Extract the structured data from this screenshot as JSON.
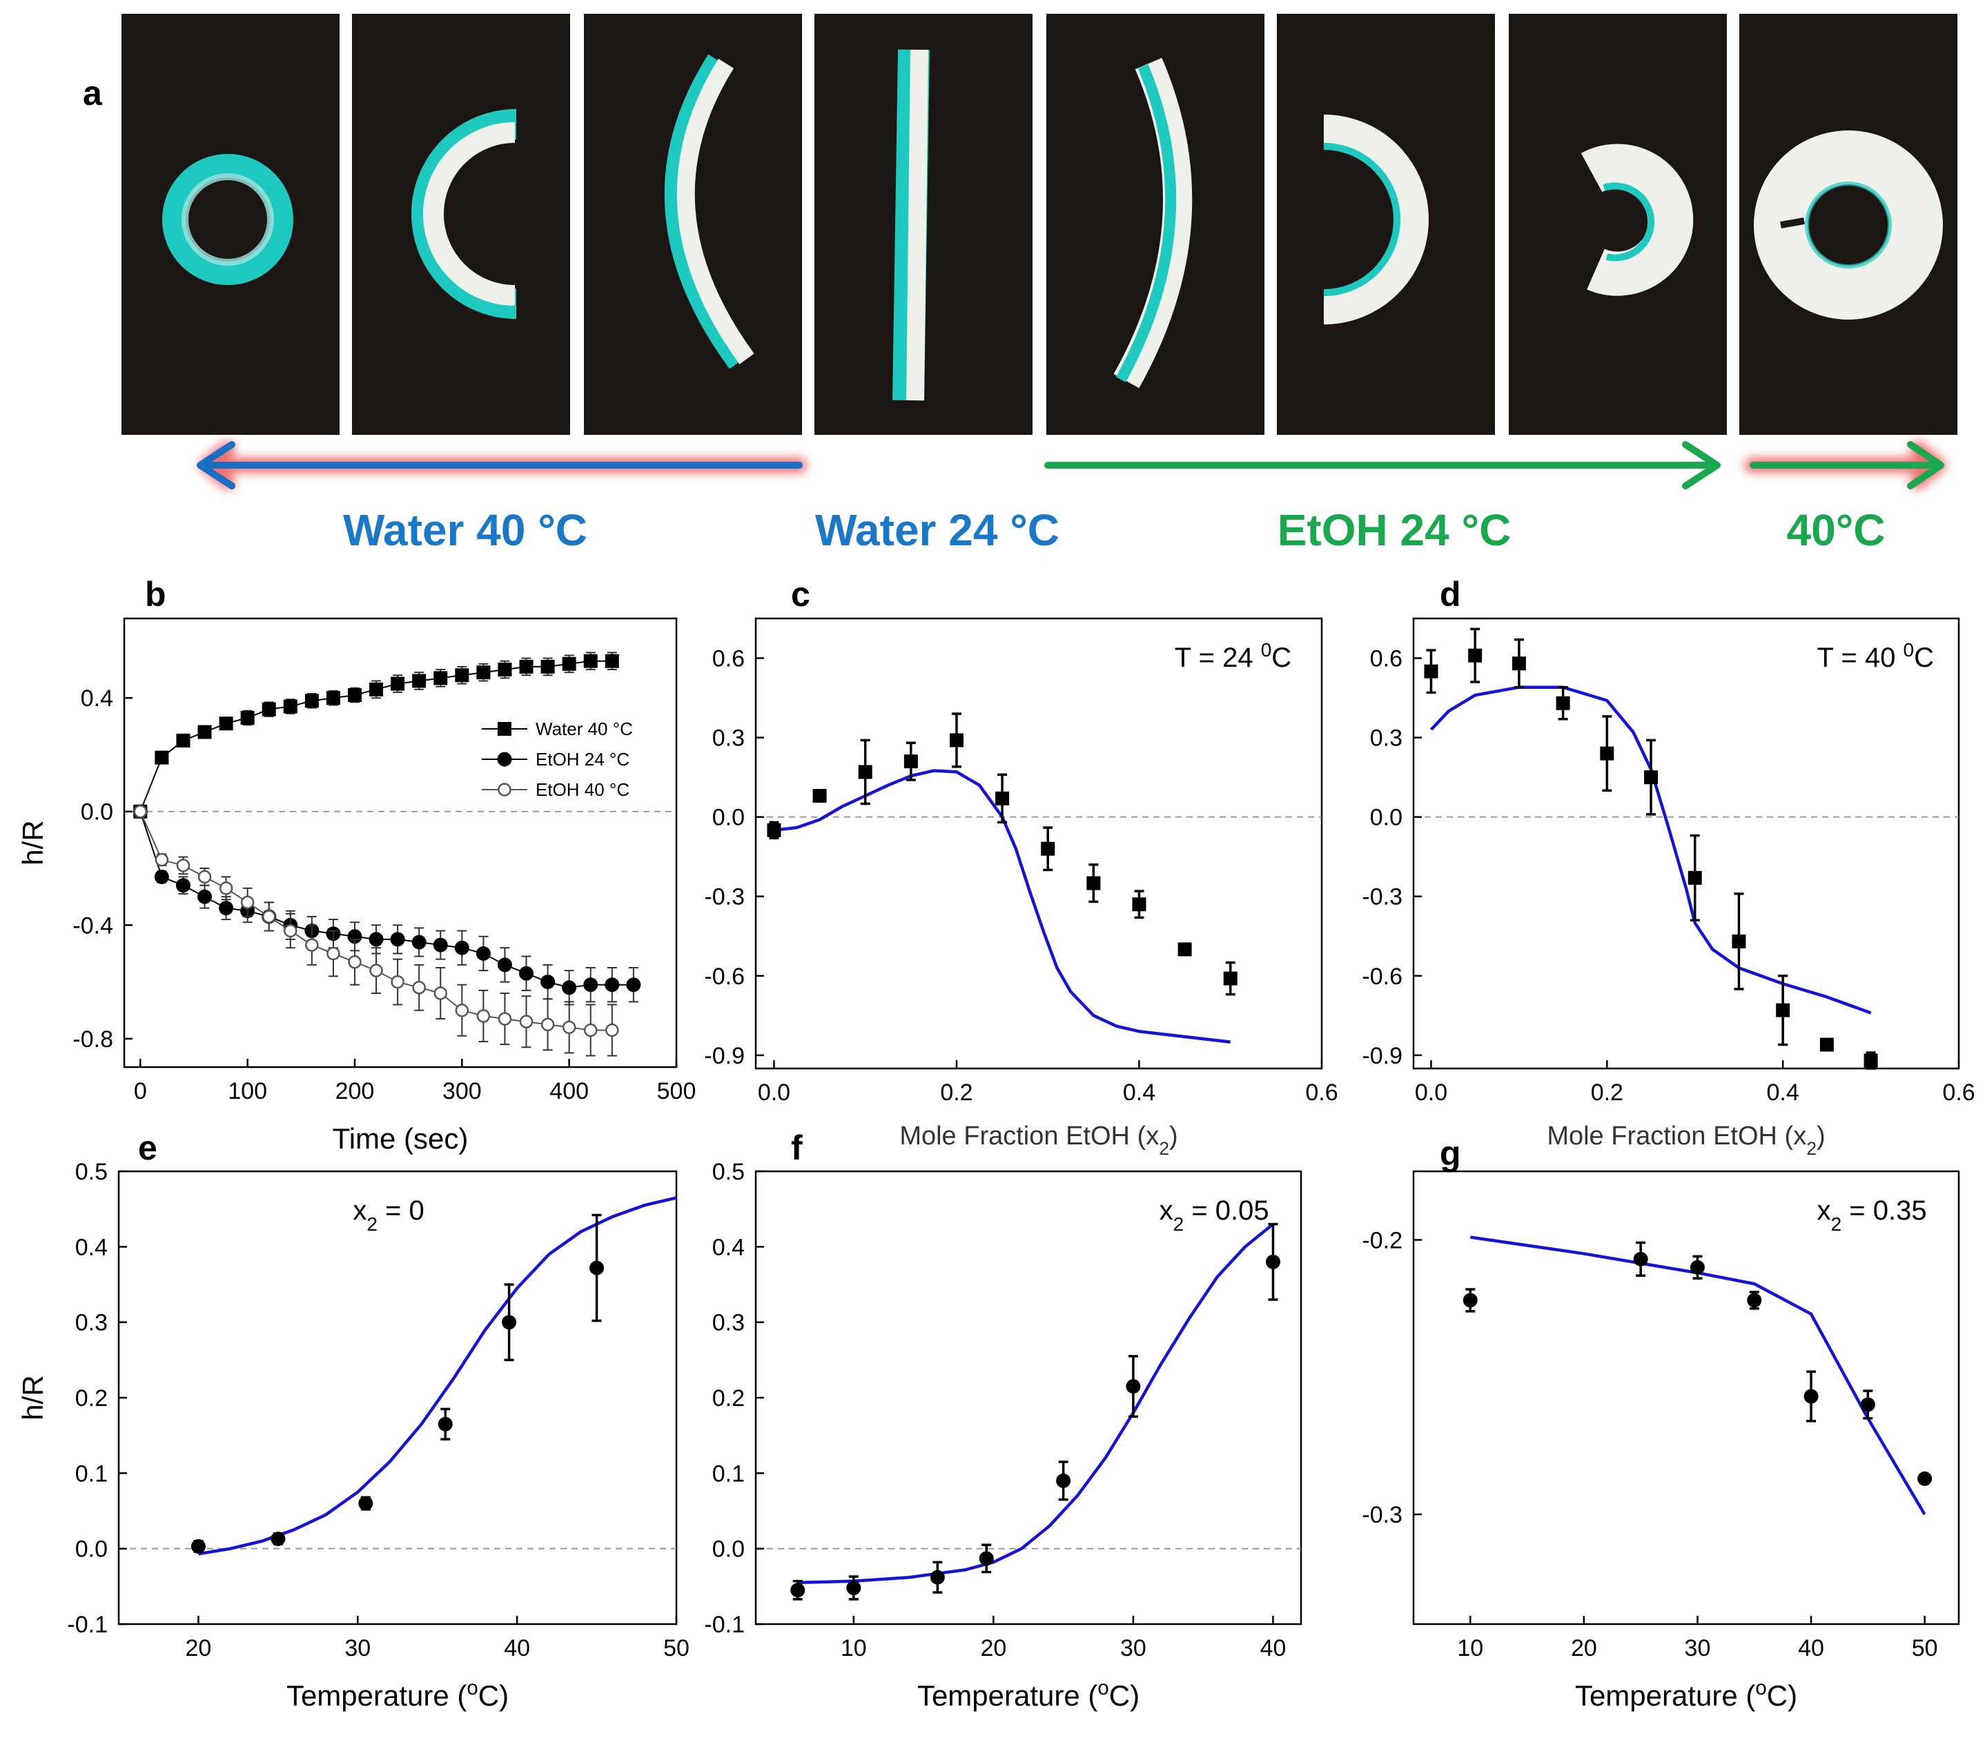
{
  "photos": {
    "label": "a",
    "colors": {
      "background": "#1c1612",
      "gel": "#eef0ea",
      "layer": "#1ec9c0"
    },
    "arrows": {
      "blue": "#1a6fc4",
      "green": "#1aa84e",
      "glow": "#f07070"
    },
    "band_labels": [
      {
        "text": "Water 40 °C",
        "color": "#1a78c8"
      },
      {
        "text": "Water 24 °C",
        "color": "#1a78c8"
      },
      {
        "text": "EtOH 24 °C",
        "color": "#1aa84e"
      },
      {
        "text": "40°C",
        "color": "#1aa84e"
      }
    ]
  },
  "chart_data": [
    {
      "panel": "b",
      "type": "line",
      "xlabel": "Time (sec)",
      "ylabel": "h/R",
      "xlim": [
        -15,
        500
      ],
      "ylim": [
        -0.9,
        0.68
      ],
      "xticks": [
        0,
        100,
        200,
        300,
        400,
        500
      ],
      "yticks": [
        0.4,
        0.0,
        -0.4,
        -0.8
      ],
      "ytick_labels": [
        "0.4",
        "0.0",
        "-0.4",
        "-0.8"
      ],
      "zero_line": true,
      "legend": {
        "placement": "center-right",
        "entries": [
          "Water 40 °C",
          "EtOH 24 °C",
          "EtOH 40 °C"
        ]
      },
      "series": [
        {
          "name": "Water 40 °C",
          "marker": "square-filled",
          "color": "#000000",
          "x": [
            0,
            20,
            40,
            60,
            80,
            100,
            120,
            140,
            160,
            180,
            200,
            220,
            240,
            260,
            280,
            300,
            320,
            340,
            360,
            380,
            400,
            420,
            440
          ],
          "y": [
            0,
            0.19,
            0.25,
            0.28,
            0.31,
            0.33,
            0.36,
            0.37,
            0.39,
            0.4,
            0.41,
            0.43,
            0.45,
            0.46,
            0.47,
            0.48,
            0.49,
            0.5,
            0.51,
            0.51,
            0.52,
            0.53,
            0.53
          ],
          "err": [
            0,
            0.01,
            0.02,
            0.02,
            0.02,
            0.025,
            0.025,
            0.025,
            0.025,
            0.025,
            0.025,
            0.03,
            0.03,
            0.03,
            0.03,
            0.03,
            0.03,
            0.03,
            0.03,
            0.03,
            0.03,
            0.03,
            0.03
          ]
        },
        {
          "name": "EtOH 24 °C",
          "marker": "circle-filled",
          "color": "#000000",
          "x": [
            0,
            20,
            40,
            60,
            80,
            100,
            120,
            140,
            160,
            180,
            200,
            220,
            240,
            260,
            280,
            300,
            320,
            340,
            360,
            380,
            400,
            420,
            440,
            460
          ],
          "y": [
            0,
            -0.23,
            -0.26,
            -0.3,
            -0.34,
            -0.35,
            -0.37,
            -0.4,
            -0.42,
            -0.43,
            -0.44,
            -0.45,
            -0.45,
            -0.46,
            -0.47,
            -0.48,
            -0.5,
            -0.54,
            -0.57,
            -0.6,
            -0.62,
            -0.61,
            -0.61,
            -0.61
          ],
          "err": [
            0,
            0.02,
            0.03,
            0.04,
            0.04,
            0.04,
            0.05,
            0.05,
            0.05,
            0.05,
            0.05,
            0.05,
            0.05,
            0.05,
            0.05,
            0.06,
            0.06,
            0.06,
            0.06,
            0.06,
            0.06,
            0.06,
            0.06,
            0.06
          ]
        },
        {
          "name": "EtOH 40 °C",
          "marker": "circle-open",
          "color": "#555555",
          "x": [
            0,
            20,
            40,
            60,
            80,
            100,
            120,
            140,
            160,
            180,
            200,
            220,
            240,
            260,
            280,
            300,
            320,
            340,
            360,
            380,
            400,
            420,
            440
          ],
          "y": [
            0,
            -0.17,
            -0.19,
            -0.23,
            -0.27,
            -0.32,
            -0.37,
            -0.42,
            -0.47,
            -0.5,
            -0.53,
            -0.56,
            -0.6,
            -0.62,
            -0.64,
            -0.7,
            -0.72,
            -0.73,
            -0.74,
            -0.75,
            -0.76,
            -0.77,
            -0.77
          ],
          "err": [
            0,
            0.02,
            0.03,
            0.03,
            0.04,
            0.05,
            0.05,
            0.06,
            0.07,
            0.08,
            0.08,
            0.08,
            0.08,
            0.08,
            0.09,
            0.09,
            0.09,
            0.09,
            0.09,
            0.09,
            0.09,
            0.09,
            0.09
          ]
        }
      ]
    },
    {
      "panel": "c",
      "type": "scatter",
      "xlabel": "Mole Fraction EtOH (x",
      "xlabel_sub": "2",
      "xlabel_tail": ")",
      "ylabel": "",
      "annotation": "T = 24 ",
      "annotation_sup": "0",
      "annotation_tail": "C",
      "xlim": [
        -0.02,
        0.6
      ],
      "ylim": [
        -0.95,
        0.75
      ],
      "xticks": [
        0.0,
        0.2,
        0.4,
        0.6
      ],
      "xtick_labels": [
        "0.0",
        "0.2",
        "0.4",
        "0.6"
      ],
      "yticks": [
        0.6,
        0.3,
        0.0,
        -0.3,
        -0.6,
        -0.9
      ],
      "ytick_labels": [
        "0.6",
        "0.3",
        "0.0",
        "-0.3",
        "-0.6",
        "-0.9"
      ],
      "zero_line": true,
      "points": {
        "marker": "square-filled",
        "x": [
          0.0,
          0.05,
          0.1,
          0.15,
          0.2,
          0.25,
          0.3,
          0.35,
          0.4,
          0.45,
          0.5
        ],
        "y": [
          -0.05,
          0.08,
          0.17,
          0.21,
          0.29,
          0.07,
          -0.12,
          -0.25,
          -0.33,
          -0.5,
          -0.61
        ],
        "err": [
          0.03,
          0.02,
          0.12,
          0.07,
          0.1,
          0.09,
          0.08,
          0.07,
          0.05,
          0.02,
          0.06
        ]
      },
      "model": {
        "color": "#1414d8",
        "x": [
          0.0,
          0.025,
          0.05,
          0.075,
          0.1,
          0.125,
          0.15,
          0.175,
          0.2,
          0.225,
          0.25,
          0.265,
          0.28,
          0.295,
          0.31,
          0.325,
          0.35,
          0.375,
          0.4,
          0.45,
          0.5
        ],
        "y": [
          -0.05,
          -0.04,
          -0.01,
          0.04,
          0.08,
          0.12,
          0.155,
          0.175,
          0.17,
          0.12,
          0.0,
          -0.12,
          -0.28,
          -0.43,
          -0.57,
          -0.66,
          -0.75,
          -0.79,
          -0.81,
          -0.83,
          -0.85
        ]
      }
    },
    {
      "panel": "d",
      "type": "scatter",
      "xlabel": "Mole Fraction EtOH (x",
      "xlabel_sub": "2",
      "xlabel_tail": ")",
      "ylabel": "",
      "annotation": "T = 40 ",
      "annotation_sup": "0",
      "annotation_tail": "C",
      "xlim": [
        -0.02,
        0.6
      ],
      "ylim": [
        -0.95,
        0.75
      ],
      "xticks": [
        0.0,
        0.2,
        0.4,
        0.6
      ],
      "xtick_labels": [
        "0.0",
        "0.2",
        "0.4",
        "0.6"
      ],
      "yticks": [
        0.6,
        0.3,
        0.0,
        -0.3,
        -0.6,
        -0.9
      ],
      "ytick_labels": [
        "0.6",
        "0.3",
        "0.0",
        "-0.3",
        "-0.6",
        "-0.9"
      ],
      "zero_line": true,
      "points": {
        "marker": "square-filled",
        "x": [
          0.0,
          0.05,
          0.1,
          0.15,
          0.2,
          0.25,
          0.3,
          0.35,
          0.4,
          0.45,
          0.5
        ],
        "y": [
          0.55,
          0.61,
          0.58,
          0.43,
          0.24,
          0.15,
          -0.23,
          -0.47,
          -0.73,
          -0.86,
          -0.92
        ],
        "err": [
          0.08,
          0.1,
          0.09,
          0.06,
          0.14,
          0.14,
          0.16,
          0.18,
          0.13,
          0.02,
          0.03
        ]
      },
      "model": {
        "color": "#1414d8",
        "x": [
          0.0,
          0.02,
          0.05,
          0.1,
          0.15,
          0.2,
          0.23,
          0.25,
          0.27,
          0.29,
          0.3,
          0.32,
          0.35,
          0.4,
          0.45,
          0.5
        ],
        "y": [
          0.33,
          0.4,
          0.46,
          0.49,
          0.49,
          0.44,
          0.32,
          0.18,
          -0.04,
          -0.27,
          -0.4,
          -0.5,
          -0.57,
          -0.63,
          -0.68,
          -0.74
        ]
      }
    },
    {
      "panel": "e",
      "type": "scatter",
      "xlabel": "Temperature (",
      "xlabel_sup": "o",
      "xlabel_tail": "C)",
      "ylabel": "h/R",
      "annotation": "x",
      "annotation_sub": "2",
      "annotation_tail": " = 0",
      "xlim": [
        15,
        50
      ],
      "ylim": [
        -0.1,
        0.5
      ],
      "xticks": [
        20,
        30,
        40,
        50
      ],
      "xtick_labels": [
        "20",
        "30",
        "40",
        "50"
      ],
      "yticks": [
        0.5,
        0.4,
        0.3,
        0.2,
        0.1,
        0.0,
        -0.1
      ],
      "ytick_labels": [
        "0.5",
        "0.4",
        "0.3",
        "0.2",
        "0.1",
        "0.0",
        "-0.1"
      ],
      "zero_line": true,
      "points": {
        "marker": "circle-filled",
        "x": [
          20,
          25,
          30.5,
          35.5,
          39.5,
          45
        ],
        "y": [
          0.003,
          0.013,
          0.06,
          0.165,
          0.3,
          0.372
        ],
        "err": [
          0.007,
          0.007,
          0.008,
          0.02,
          0.05,
          0.07
        ]
      },
      "model": {
        "color": "#1414d8",
        "x": [
          20,
          22,
          24,
          26,
          28,
          30,
          32,
          34,
          36,
          38,
          40,
          42,
          44,
          46,
          48,
          50
        ],
        "y": [
          -0.007,
          0.0,
          0.01,
          0.025,
          0.045,
          0.075,
          0.115,
          0.165,
          0.225,
          0.29,
          0.345,
          0.39,
          0.42,
          0.44,
          0.455,
          0.465
        ]
      }
    },
    {
      "panel": "f",
      "type": "scatter",
      "xlabel": "Temperature (",
      "xlabel_sup": "o",
      "xlabel_tail": "C)",
      "ylabel": "",
      "annotation": "x",
      "annotation_sub": "2",
      "annotation_tail": " = 0.05",
      "xlim": [
        3,
        42
      ],
      "ylim": [
        -0.1,
        0.5
      ],
      "xticks": [
        10,
        20,
        30,
        40
      ],
      "xtick_labels": [
        "10",
        "20",
        "30",
        "40"
      ],
      "yticks": [
        0.5,
        0.4,
        0.3,
        0.2,
        0.1,
        0.0,
        -0.1
      ],
      "ytick_labels": [
        "0.5",
        "0.4",
        "0.3",
        "0.2",
        "0.1",
        "0.0",
        "-0.1"
      ],
      "zero_line": true,
      "points": {
        "marker": "circle-filled",
        "x": [
          6,
          10,
          16,
          19.5,
          25,
          30,
          40
        ],
        "y": [
          -0.055,
          -0.052,
          -0.038,
          -0.013,
          0.09,
          0.215,
          0.38
        ],
        "err": [
          0.012,
          0.015,
          0.02,
          0.018,
          0.025,
          0.04,
          0.05
        ]
      },
      "model": {
        "color": "#1414d8",
        "x": [
          6,
          10,
          14,
          18,
          20,
          22,
          24,
          26,
          28,
          30,
          32,
          34,
          36,
          38,
          40
        ],
        "y": [
          -0.045,
          -0.043,
          -0.038,
          -0.028,
          -0.018,
          0.0,
          0.03,
          0.07,
          0.12,
          0.18,
          0.245,
          0.305,
          0.36,
          0.4,
          0.43
        ]
      }
    },
    {
      "panel": "g",
      "type": "scatter",
      "xlabel": "Temperature (",
      "xlabel_sup": "o",
      "xlabel_tail": "C)",
      "ylabel": "",
      "annotation": "x",
      "annotation_sub": "2",
      "annotation_tail": " = 0.35",
      "xlim": [
        5,
        53
      ],
      "ylim": [
        -0.34,
        -0.175
      ],
      "xticks": [
        10,
        20,
        30,
        40,
        50
      ],
      "xtick_labels": [
        "10",
        "20",
        "30",
        "40",
        "50"
      ],
      "yticks": [
        -0.2,
        -0.3
      ],
      "ytick_labels": [
        "-0.2",
        "-0.3"
      ],
      "zero_line": false,
      "points": {
        "marker": "circle-filled",
        "x": [
          10,
          25,
          30,
          35,
          40,
          45,
          50
        ],
        "y": [
          -0.222,
          -0.207,
          -0.21,
          -0.222,
          -0.257,
          -0.26,
          -0.287
        ],
        "err": [
          0.004,
          0.006,
          0.004,
          0.003,
          0.009,
          0.005,
          0.001
        ]
      },
      "model": {
        "color": "#1414d8",
        "x": [
          10,
          20,
          30,
          35,
          40,
          45,
          50
        ],
        "y": [
          -0.199,
          -0.205,
          -0.212,
          -0.216,
          -0.227,
          -0.265,
          -0.3
        ]
      }
    }
  ]
}
